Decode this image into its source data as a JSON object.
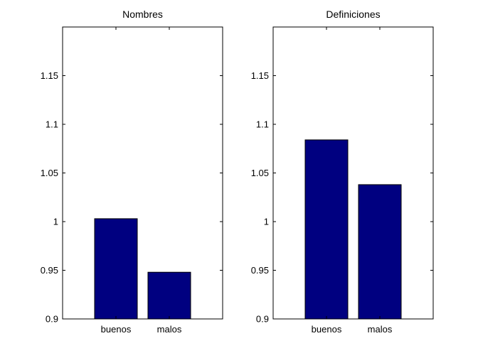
{
  "chart_data": [
    {
      "type": "bar",
      "title": "Nombres",
      "categories": [
        "buenos",
        "malos"
      ],
      "values": [
        1.003,
        0.948
      ],
      "ylim": [
        0.9,
        1.2
      ],
      "yticks": [
        0.9,
        0.95,
        1,
        1.05,
        1.1,
        1.15
      ],
      "ytick_labels": [
        "0.9",
        "0.95",
        "1",
        "1.05",
        "1.1",
        "1.15"
      ],
      "xlabel": "",
      "ylabel": "",
      "grid": false,
      "color": "#000080"
    },
    {
      "type": "bar",
      "title": "Definiciones",
      "categories": [
        "buenos",
        "malos"
      ],
      "values": [
        1.084,
        1.038
      ],
      "ylim": [
        0.9,
        1.2
      ],
      "yticks": [
        0.9,
        0.95,
        1,
        1.05,
        1.1,
        1.15
      ],
      "ytick_labels": [
        "0.9",
        "0.95",
        "1",
        "1.05",
        "1.1",
        "1.15"
      ],
      "xlabel": "",
      "ylabel": "",
      "grid": false,
      "color": "#000080"
    }
  ]
}
